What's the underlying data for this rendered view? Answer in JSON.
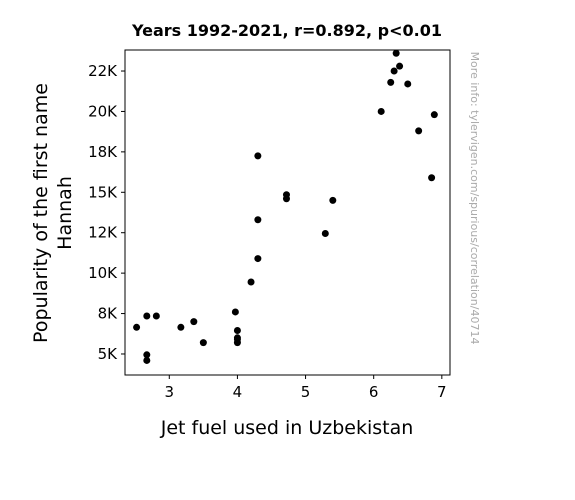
{
  "chart_data": {
    "type": "scatter",
    "title": "Years 1992-2021, r=0.892, p<0.01",
    "xlabel": "Jet fuel used in Uzbekistan",
    "ylabel": [
      "Popularity of the first name",
      "Hannah"
    ],
    "watermark": "More info: tylervigen.com/spurious/correlation/40714",
    "xlim": [
      2.35,
      7.12
    ],
    "ylim": [
      3700,
      23800
    ],
    "xticks": [
      {
        "value": 3,
        "label": "3"
      },
      {
        "value": 4,
        "label": "4"
      },
      {
        "value": 5,
        "label": "5"
      },
      {
        "value": 6,
        "label": "6"
      },
      {
        "value": 7,
        "label": "7"
      }
    ],
    "yticks": [
      {
        "value": 5000,
        "label": "5K"
      },
      {
        "value": 7500,
        "label": "8K"
      },
      {
        "value": 10000,
        "label": "10K"
      },
      {
        "value": 12500,
        "label": "12K"
      },
      {
        "value": 15000,
        "label": "15K"
      },
      {
        "value": 17500,
        "label": "18K"
      },
      {
        "value": 20000,
        "label": "20K"
      },
      {
        "value": 22500,
        "label": "22K"
      }
    ],
    "grid": false,
    "marker_color": "#000000",
    "points": [
      {
        "x": 2.52,
        "y": 6650
      },
      {
        "x": 2.67,
        "y": 7350
      },
      {
        "x": 2.67,
        "y": 4950
      },
      {
        "x": 2.67,
        "y": 4600
      },
      {
        "x": 2.81,
        "y": 7350
      },
      {
        "x": 3.17,
        "y": 6650
      },
      {
        "x": 3.36,
        "y": 7000
      },
      {
        "x": 3.5,
        "y": 5700
      },
      {
        "x": 3.97,
        "y": 7600
      },
      {
        "x": 4.0,
        "y": 6450
      },
      {
        "x": 4.0,
        "y": 6000
      },
      {
        "x": 4.0,
        "y": 5900
      },
      {
        "x": 4.0,
        "y": 5700
      },
      {
        "x": 4.2,
        "y": 9450
      },
      {
        "x": 4.3,
        "y": 17250
      },
      {
        "x": 4.3,
        "y": 13300
      },
      {
        "x": 4.3,
        "y": 10900
      },
      {
        "x": 4.72,
        "y": 14850
      },
      {
        "x": 4.72,
        "y": 14600
      },
      {
        "x": 5.29,
        "y": 12450
      },
      {
        "x": 5.4,
        "y": 14500
      },
      {
        "x": 6.11,
        "y": 20000
      },
      {
        "x": 6.25,
        "y": 21800
      },
      {
        "x": 6.3,
        "y": 22500
      },
      {
        "x": 6.33,
        "y": 23600
      },
      {
        "x": 6.38,
        "y": 22800
      },
      {
        "x": 6.5,
        "y": 21700
      },
      {
        "x": 6.66,
        "y": 18800
      },
      {
        "x": 6.85,
        "y": 15900
      },
      {
        "x": 6.89,
        "y": 19800
      }
    ]
  }
}
